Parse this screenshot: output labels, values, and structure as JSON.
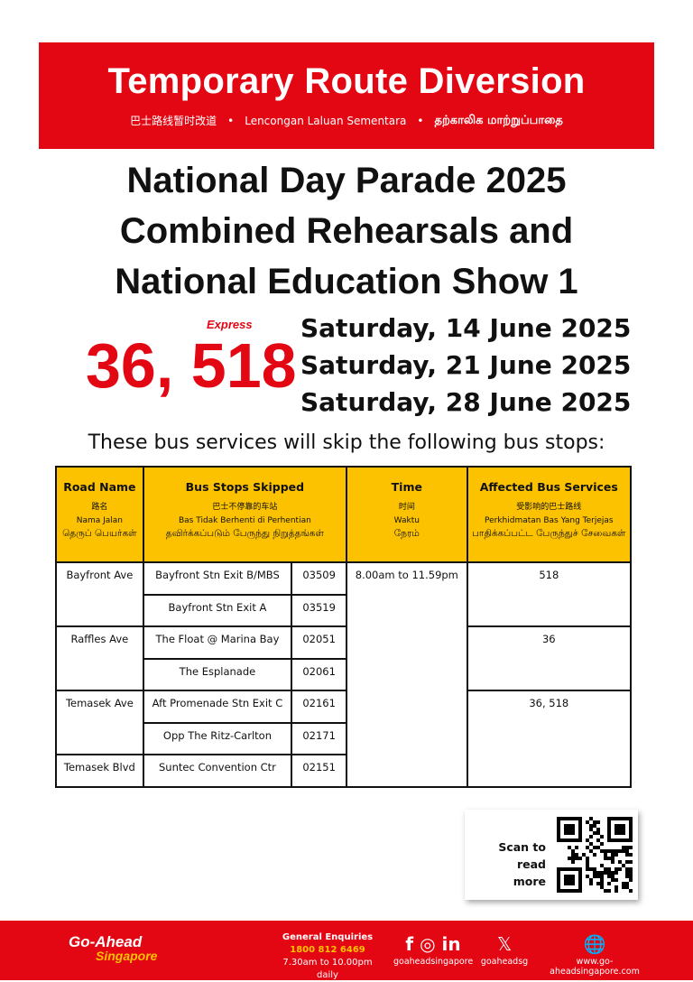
{
  "banner": {
    "title": "Temporary Route Diversion",
    "zh": "巴士路线暂时改道",
    "ms": "Lencongan Laluan Sementara",
    "ta": "தற்காலிக மாற்றுப்பாதை",
    "sep": "•"
  },
  "event": {
    "lines": [
      "National Day Parade 2025",
      "Combined Rehearsals and",
      "National Education Show 1"
    ]
  },
  "services": {
    "numbers": "36, 518",
    "express_label": "Express"
  },
  "dates": [
    "Saturday, 14 June 2025",
    "Saturday, 21 June 2025",
    "Saturday, 28 June 2025"
  ],
  "intro": "These bus services will skip the following bus stops:",
  "table": {
    "headers": [
      {
        "en": "Road Name",
        "zh": "路名",
        "ms": "Nama Jalan",
        "ta": "தெருப் பெயர்கள்"
      },
      {
        "en": "Bus Stops Skipped",
        "zh": "巴士不停靠的车站",
        "ms": "Bas Tidak Berhenti di Perhentian",
        "ta": "தவிர்க்கப்படும் பேருந்து நிறுத்தங்கள்"
      },
      {
        "en": "Time",
        "zh": "时间",
        "ms": "Waktu",
        "ta": "நேரம்"
      },
      {
        "en": "Affected Bus Services",
        "zh": "受影响的巴士路线",
        "ms": "Perkhidmatan Bas Yang Terjejas",
        "ta": "பாதிக்கப்பட்ட பேருந்துச் சேவைகள்"
      }
    ],
    "roads": [
      "Bayfront Ave",
      "Raffles Ave",
      "Temasek Ave",
      "Temasek Blvd"
    ],
    "stops": [
      {
        "name": "Bayfront Stn Exit B/MBS",
        "code": "03509"
      },
      {
        "name": "Bayfront Stn Exit A",
        "code": "03519"
      },
      {
        "name": "The Float @ Marina Bay",
        "code": "02051"
      },
      {
        "name": "The Esplanade",
        "code": "02061"
      },
      {
        "name": "Aft Promenade Stn Exit C",
        "code": "02161"
      },
      {
        "name": "Opp The Ritz-Carlton",
        "code": "02171"
      },
      {
        "name": "Suntec Convention Ctr",
        "code": "02151"
      }
    ],
    "time": "8.00am to 11.59pm",
    "affected": [
      "518",
      "36",
      "36, 518"
    ]
  },
  "qr": {
    "text_1": "Scan to",
    "text_2": "read more"
  },
  "footer": {
    "logo_1": "Go-Ahead",
    "logo_2": "Singapore",
    "enquiries_title": "General Enquiries",
    "phone": "1800 812 6469",
    "hours": "7.30am to 10.00pm daily",
    "social_1": "goaheadsingapore",
    "social_2": "goaheadsg",
    "website": "www.go-aheadsingapore.com"
  },
  "colors": {
    "red": "#e30613",
    "yellow": "#fcc200"
  }
}
